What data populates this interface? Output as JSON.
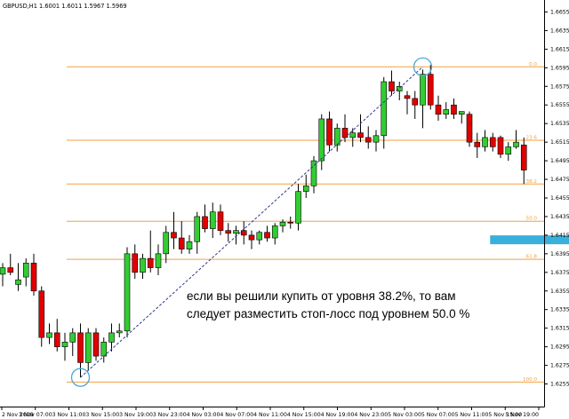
{
  "window": {
    "title": "GBPUSD,H1  1.6001 1.6011 1.5967 1.5969"
  },
  "chart_data": {
    "type": "candlestick",
    "symbol": "GBPUSD",
    "timeframe": "H1",
    "ylim": [
      1.6245,
      1.6665
    ],
    "y_ticks": [
      "1.6655",
      "1.6635",
      "1.6615",
      "1.6595",
      "1.6575",
      "1.6555",
      "1.6535",
      "1.6515",
      "1.6495",
      "1.6475",
      "1.6455",
      "1.6435",
      "1.6415",
      "1.6395",
      "1.6375",
      "1.6355",
      "1.6335",
      "1.6315",
      "1.6295",
      "1.6275",
      "1.6255"
    ],
    "x_ticks": [
      "2 Nov 2009",
      "3 Nov 07:00",
      "3 Nov 11:00",
      "3 Nov 15:00",
      "3 Nov 19:00",
      "3 Nov 23:00",
      "4 Nov 03:00",
      "4 Nov 07:00",
      "4 Nov 11:00",
      "4 Nov 15:00",
      "4 Nov 19:00",
      "4 Nov 23:00",
      "5 Nov 03:00",
      "5 Nov 07:00",
      "5 Nov 11:00",
      "5 Nov 15:00",
      "5 Nov 19:00"
    ],
    "fib_levels": [
      {
        "label": "0.0",
        "price": 1.6596
      },
      {
        "label": "23.6",
        "price": 1.6517
      },
      {
        "label": "38.2",
        "price": 1.647
      },
      {
        "label": "50.0",
        "price": 1.643
      },
      {
        "label": "61.8",
        "price": 1.6389
      },
      {
        "label": "100.0",
        "price": 1.6257
      }
    ],
    "candles": [
      {
        "o": 1.6373,
        "h": 1.6385,
        "l": 1.636,
        "c": 1.638
      },
      {
        "o": 1.638,
        "h": 1.6395,
        "l": 1.6372,
        "c": 1.6375
      },
      {
        "o": 1.6362,
        "h": 1.6385,
        "l": 1.6355,
        "c": 1.6367
      },
      {
        "o": 1.637,
        "h": 1.639,
        "l": 1.636,
        "c": 1.6385
      },
      {
        "o": 1.6385,
        "h": 1.6395,
        "l": 1.635,
        "c": 1.6355
      },
      {
        "o": 1.6355,
        "h": 1.636,
        "l": 1.6295,
        "c": 1.6305
      },
      {
        "o": 1.6305,
        "h": 1.632,
        "l": 1.6298,
        "c": 1.631
      },
      {
        "o": 1.631,
        "h": 1.6325,
        "l": 1.629,
        "c": 1.6295
      },
      {
        "o": 1.6295,
        "h": 1.631,
        "l": 1.628,
        "c": 1.63
      },
      {
        "o": 1.63,
        "h": 1.6315,
        "l": 1.6285,
        "c": 1.631
      },
      {
        "o": 1.631,
        "h": 1.632,
        "l": 1.6262,
        "c": 1.6278
      },
      {
        "o": 1.6278,
        "h": 1.6315,
        "l": 1.627,
        "c": 1.631
      },
      {
        "o": 1.631,
        "h": 1.6315,
        "l": 1.628,
        "c": 1.6285
      },
      {
        "o": 1.6285,
        "h": 1.6305,
        "l": 1.6278,
        "c": 1.63
      },
      {
        "o": 1.63,
        "h": 1.632,
        "l": 1.629,
        "c": 1.631
      },
      {
        "o": 1.631,
        "h": 1.632,
        "l": 1.6305,
        "c": 1.6312
      },
      {
        "o": 1.6312,
        "h": 1.6402,
        "l": 1.6305,
        "c": 1.6395
      },
      {
        "o": 1.6395,
        "h": 1.6405,
        "l": 1.6368,
        "c": 1.6375
      },
      {
        "o": 1.6375,
        "h": 1.6395,
        "l": 1.6368,
        "c": 1.639
      },
      {
        "o": 1.639,
        "h": 1.642,
        "l": 1.6375,
        "c": 1.638
      },
      {
        "o": 1.638,
        "h": 1.6405,
        "l": 1.6372,
        "c": 1.6395
      },
      {
        "o": 1.6395,
        "h": 1.6425,
        "l": 1.6385,
        "c": 1.6418
      },
      {
        "o": 1.6418,
        "h": 1.644,
        "l": 1.64,
        "c": 1.6412
      },
      {
        "o": 1.6412,
        "h": 1.643,
        "l": 1.6395,
        "c": 1.64
      },
      {
        "o": 1.64,
        "h": 1.6415,
        "l": 1.6395,
        "c": 1.6408
      },
      {
        "o": 1.6408,
        "h": 1.644,
        "l": 1.6395,
        "c": 1.6435
      },
      {
        "o": 1.6435,
        "h": 1.6448,
        "l": 1.6418,
        "c": 1.6422
      },
      {
        "o": 1.6422,
        "h": 1.645,
        "l": 1.6412,
        "c": 1.644
      },
      {
        "o": 1.644,
        "h": 1.6448,
        "l": 1.6415,
        "c": 1.642
      },
      {
        "o": 1.642,
        "h": 1.6428,
        "l": 1.6408,
        "c": 1.6417
      },
      {
        "o": 1.6417,
        "h": 1.6425,
        "l": 1.6405,
        "c": 1.642
      },
      {
        "o": 1.642,
        "h": 1.643,
        "l": 1.6405,
        "c": 1.6415
      },
      {
        "o": 1.6415,
        "h": 1.642,
        "l": 1.64,
        "c": 1.641
      },
      {
        "o": 1.641,
        "h": 1.642,
        "l": 1.6405,
        "c": 1.6418
      },
      {
        "o": 1.6418,
        "h": 1.6425,
        "l": 1.6408,
        "c": 1.6412
      },
      {
        "o": 1.6412,
        "h": 1.6428,
        "l": 1.6405,
        "c": 1.6425
      },
      {
        "o": 1.6425,
        "h": 1.6432,
        "l": 1.6418,
        "c": 1.6429
      },
      {
        "o": 1.6429,
        "h": 1.6435,
        "l": 1.6422,
        "c": 1.6428
      },
      {
        "o": 1.6428,
        "h": 1.647,
        "l": 1.642,
        "c": 1.6462
      },
      {
        "o": 1.6462,
        "h": 1.648,
        "l": 1.6455,
        "c": 1.6468
      },
      {
        "o": 1.6468,
        "h": 1.65,
        "l": 1.646,
        "c": 1.6495
      },
      {
        "o": 1.6495,
        "h": 1.6545,
        "l": 1.6485,
        "c": 1.654
      },
      {
        "o": 1.654,
        "h": 1.6548,
        "l": 1.6505,
        "c": 1.6512
      },
      {
        "o": 1.6512,
        "h": 1.6535,
        "l": 1.6505,
        "c": 1.653
      },
      {
        "o": 1.653,
        "h": 1.6545,
        "l": 1.6515,
        "c": 1.652
      },
      {
        "o": 1.652,
        "h": 1.653,
        "l": 1.651,
        "c": 1.6525
      },
      {
        "o": 1.6525,
        "h": 1.6545,
        "l": 1.6515,
        "c": 1.652
      },
      {
        "o": 1.652,
        "h": 1.6532,
        "l": 1.6508,
        "c": 1.6515
      },
      {
        "o": 1.6515,
        "h": 1.6528,
        "l": 1.6505,
        "c": 1.6522
      },
      {
        "o": 1.6522,
        "h": 1.6585,
        "l": 1.6508,
        "c": 1.658
      },
      {
        "o": 1.658,
        "h": 1.6592,
        "l": 1.6565,
        "c": 1.657
      },
      {
        "o": 1.657,
        "h": 1.658,
        "l": 1.656,
        "c": 1.6575
      },
      {
        "o": 1.6565,
        "h": 1.657,
        "l": 1.6545,
        "c": 1.6562
      },
      {
        "o": 1.6562,
        "h": 1.657,
        "l": 1.654,
        "c": 1.6555
      },
      {
        "o": 1.6555,
        "h": 1.6593,
        "l": 1.653,
        "c": 1.6588
      },
      {
        "o": 1.6588,
        "h": 1.6598,
        "l": 1.655,
        "c": 1.6555
      },
      {
        "o": 1.6555,
        "h": 1.6565,
        "l": 1.6538,
        "c": 1.6545
      },
      {
        "o": 1.6545,
        "h": 1.6558,
        "l": 1.654,
        "c": 1.655
      },
      {
        "o": 1.6555,
        "h": 1.6562,
        "l": 1.654,
        "c": 1.6545
      },
      {
        "o": 1.6545,
        "h": 1.6548,
        "l": 1.6535,
        "c": 1.6548
      },
      {
        "o": 1.6545,
        "h": 1.6548,
        "l": 1.651,
        "c": 1.6515
      },
      {
        "o": 1.6515,
        "h": 1.6525,
        "l": 1.6498,
        "c": 1.651
      },
      {
        "o": 1.651,
        "h": 1.6528,
        "l": 1.6505,
        "c": 1.652
      },
      {
        "o": 1.652,
        "h": 1.6525,
        "l": 1.6505,
        "c": 1.651
      },
      {
        "o": 1.652,
        "h": 1.6522,
        "l": 1.6498,
        "c": 1.6502
      },
      {
        "o": 1.6502,
        "h": 1.6515,
        "l": 1.6495,
        "c": 1.651
      },
      {
        "o": 1.651,
        "h": 1.6528,
        "l": 1.6508,
        "c": 1.6515
      },
      {
        "o": 1.6512,
        "h": 1.652,
        "l": 1.647,
        "c": 1.6485
      }
    ],
    "trend_line": {
      "from_index": 10,
      "from_price": 1.6262,
      "to_index": 54,
      "to_price": 1.6596
    },
    "markers": [
      {
        "index": 10,
        "price": 1.6262,
        "shape": "circle"
      },
      {
        "index": 54,
        "price": 1.6596,
        "shape": "circle"
      }
    ],
    "stop_zone": {
      "from_index": 63,
      "to_index": 73,
      "price": 1.641
    },
    "annotation": {
      "line1": "если вы решили купить от уровня 38.2%, то вам",
      "line2": "следует разместить стоп-лосс под уровнем 50.0 %"
    },
    "colors": {
      "bull": "#32cd32",
      "bear": "#e00000",
      "fib": "#f0a040",
      "trend": "#2c3a8a",
      "marker": "#4aa8d0",
      "zone": "#3aafdc"
    }
  }
}
